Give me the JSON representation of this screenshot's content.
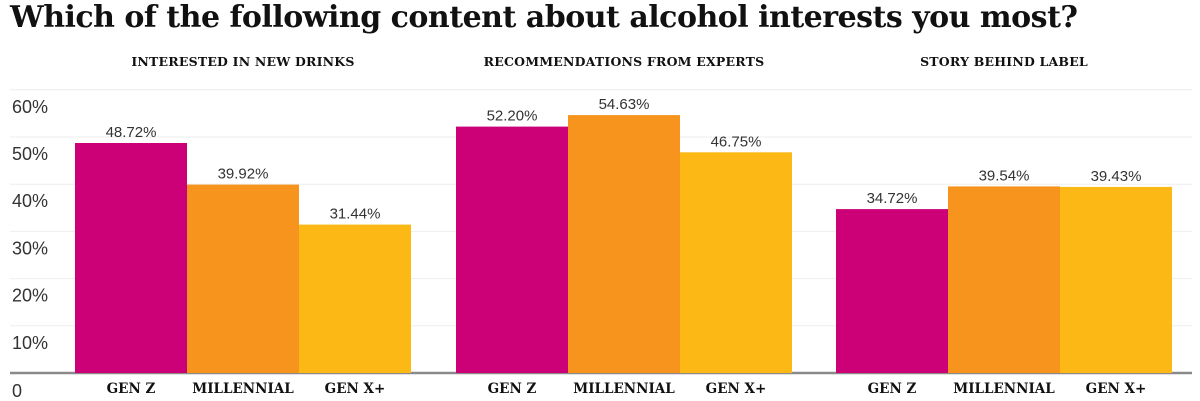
{
  "chart_data": {
    "type": "bar",
    "title": "Which of the following content about alcohol interests you most?",
    "ylim": [
      0,
      60
    ],
    "yticks": [
      "0",
      "10%",
      "20%",
      "30%",
      "40%",
      "50%",
      "60%"
    ],
    "categories": [
      "GEN Z",
      "MILLENNIAL",
      "GEN X+"
    ],
    "colors": [
      "#cc0077",
      "#f7941d",
      "#fcb814"
    ],
    "groups": [
      {
        "title": "INTERESTED IN NEW DRINKS",
        "values": [
          48.72,
          39.92,
          31.44
        ],
        "labels": [
          "48.72%",
          "39.92%",
          "31.44%"
        ]
      },
      {
        "title": "RECOMMENDATIONS FROM EXPERTS",
        "values": [
          52.2,
          54.63,
          46.75
        ],
        "labels": [
          "52.20%",
          "54.63%",
          "46.75%"
        ]
      },
      {
        "title": "STORY BEHIND LABEL",
        "values": [
          34.72,
          39.54,
          39.43
        ],
        "labels": [
          "34.72%",
          "39.54%",
          "39.43%"
        ]
      }
    ]
  }
}
